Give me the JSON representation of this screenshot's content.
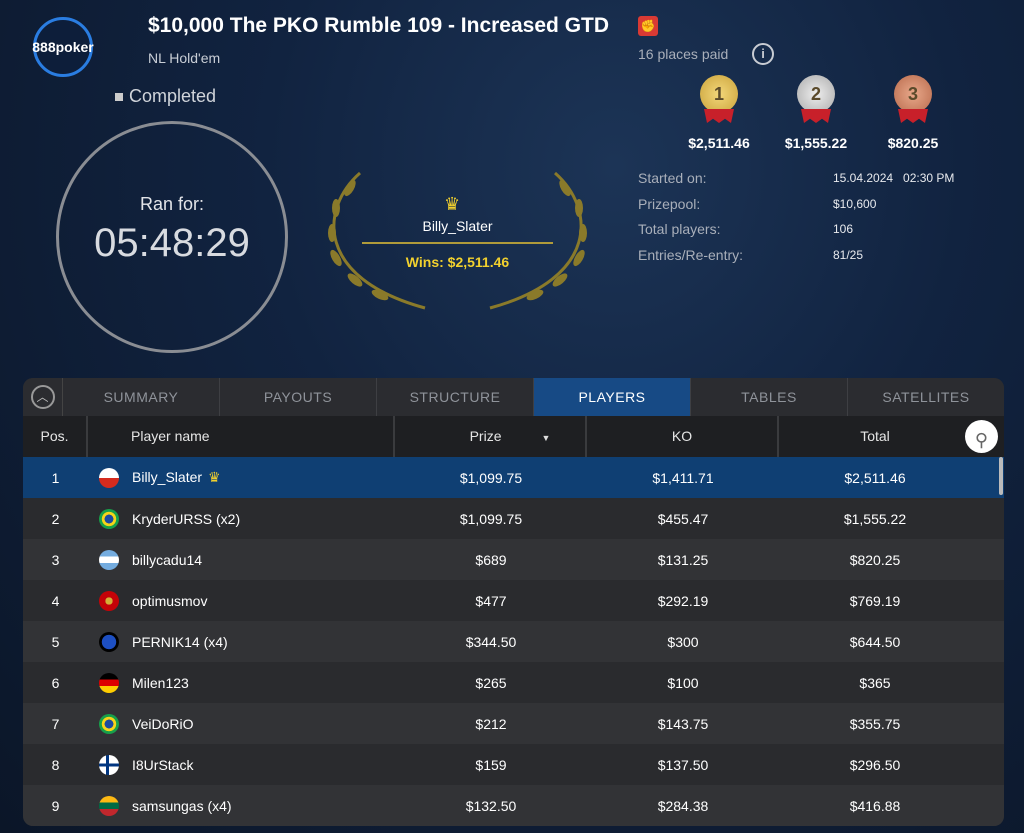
{
  "header": {
    "logo": "888poker",
    "title": "$10,000 The PKO Rumble 109 - Increased GTD",
    "game": "NL Hold'em",
    "status": "Completed"
  },
  "clock": {
    "label": "Ran for:",
    "time": "05:48:29"
  },
  "winner": {
    "name": "Billy_Slater",
    "wins": "Wins: $2,511.46"
  },
  "payouts": {
    "places_paid": "16 places paid",
    "medals": [
      {
        "rank": "1",
        "amount": "$2,511.46"
      },
      {
        "rank": "2",
        "amount": "$1,555.22"
      },
      {
        "rank": "3",
        "amount": "$820.25"
      }
    ]
  },
  "info": [
    {
      "label": "Started on:",
      "value": "15.04.2024   02:30 PM"
    },
    {
      "label": "Prizepool:",
      "value": "$10,600"
    },
    {
      "label": "Total players:",
      "value": "106"
    },
    {
      "label": "Entries/Re-entry:",
      "value": "81/25"
    }
  ],
  "tabs": [
    "SUMMARY",
    "PAYOUTS",
    "STRUCTURE",
    "PLAYERS",
    "TABLES",
    "SATELLITES"
  ],
  "columns": {
    "pos": "Pos.",
    "name": "Player name",
    "prize": "Prize",
    "ko": "KO",
    "total": "Total"
  },
  "players": [
    {
      "pos": "1",
      "name": "Billy_Slater",
      "prize": "$1,099.75",
      "ko": "$1,411.71",
      "total": "$2,511.46",
      "flag": "chile"
    },
    {
      "pos": "2",
      "name": "KryderURSS (x2)",
      "prize": "$1,099.75",
      "ko": "$455.47",
      "total": "$1,555.22",
      "flag": "brazil"
    },
    {
      "pos": "3",
      "name": "billycadu14",
      "prize": "$689",
      "ko": "$131.25",
      "total": "$820.25",
      "flag": "argentina"
    },
    {
      "pos": "4",
      "name": "optimusmov",
      "prize": "$477",
      "ko": "$292.19",
      "total": "$769.19",
      "flag": "montenegro"
    },
    {
      "pos": "5",
      "name": "PERNIK14 (x4)",
      "prize": "$344.50",
      "ko": "$300",
      "total": "$644.50",
      "flag": "world"
    },
    {
      "pos": "6",
      "name": "Milen123",
      "prize": "$265",
      "ko": "$100",
      "total": "$365",
      "flag": "germany"
    },
    {
      "pos": "7",
      "name": "VeiDoRiO",
      "prize": "$212",
      "ko": "$143.75",
      "total": "$355.75",
      "flag": "brazil"
    },
    {
      "pos": "8",
      "name": "I8UrStack",
      "prize": "$159",
      "ko": "$137.50",
      "total": "$296.50",
      "flag": "finland"
    },
    {
      "pos": "9",
      "name": "samsungas (x4)",
      "prize": "$132.50",
      "ko": "$284.38",
      "total": "$416.88",
      "flag": "lithuania"
    }
  ]
}
